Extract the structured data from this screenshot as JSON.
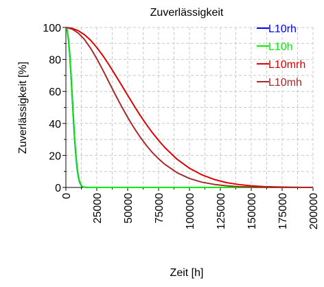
{
  "chart_data": {
    "type": "line",
    "title": "Zuverlässigkeit",
    "xlabel": "Zeit [h]",
    "ylabel": "Zuverlässigkeit [%]",
    "xlim": [
      0,
      200000
    ],
    "ylim": [
      0,
      100
    ],
    "xticks": [
      "0",
      "25000",
      "50000",
      "75000",
      "100000",
      "125000",
      "150000",
      "175000",
      "200000"
    ],
    "yticks": [
      "0",
      "20",
      "40",
      "60",
      "80",
      "100"
    ],
    "grid": true,
    "legend_position": "top-right",
    "series": [
      {
        "name": "L10rh",
        "color": "#0000ff",
        "x": [
          0,
          1000,
          2000,
          3000,
          4000,
          5000,
          6000,
          7000,
          8000,
          9000,
          10000,
          11000,
          12000,
          13000,
          14000,
          16000,
          20000,
          200000
        ],
        "y": [
          100,
          98.5,
          93.0,
          84.0,
          72.0,
          58.0,
          44.0,
          31.0,
          20.5,
          12.5,
          7.0,
          3.6,
          1.7,
          0.7,
          0.3,
          0.05,
          0,
          0
        ]
      },
      {
        "name": "L10h",
        "color": "#00ee00",
        "x": [
          0,
          1000,
          2000,
          3000,
          4000,
          5000,
          6000,
          7000,
          8000,
          9000,
          10000,
          11000,
          12000,
          13000,
          14000,
          16000,
          20000,
          200000
        ],
        "y": [
          100,
          98.5,
          93.5,
          85.0,
          73.0,
          59.5,
          45.5,
          32.5,
          21.5,
          13.5,
          7.6,
          4.0,
          1.9,
          0.8,
          0.35,
          0.05,
          0,
          0
        ]
      },
      {
        "name": "L10mrh",
        "color": "#dd0000",
        "x": [
          0,
          5000,
          10000,
          15000,
          20000,
          25000,
          30000,
          35000,
          40000,
          45000,
          50000,
          55000,
          60000,
          65000,
          70000,
          75000,
          80000,
          90000,
          100000,
          110000,
          120000,
          130000,
          140000,
          150000,
          160000,
          170000,
          180000,
          190000,
          200000
        ],
        "y": [
          100,
          99.5,
          98.0,
          95.5,
          92.0,
          87.5,
          82.3,
          76.5,
          70.3,
          64.0,
          57.6,
          51.3,
          45.2,
          39.5,
          34.2,
          29.4,
          25.0,
          17.6,
          12.0,
          7.9,
          5.0,
          3.0,
          1.8,
          1.0,
          0.55,
          0.3,
          0.15,
          0.07,
          0.03
        ]
      },
      {
        "name": "L10mh",
        "color": "#a52a2a",
        "x": [
          0,
          5000,
          10000,
          15000,
          20000,
          25000,
          30000,
          35000,
          40000,
          45000,
          50000,
          55000,
          60000,
          65000,
          70000,
          75000,
          80000,
          90000,
          100000,
          110000,
          120000,
          130000,
          140000,
          150000,
          160000,
          170000,
          180000,
          190000,
          200000
        ],
        "y": [
          100,
          99.0,
          96.5,
          92.5,
          87.0,
          80.5,
          73.2,
          65.6,
          58.0,
          50.7,
          43.8,
          37.4,
          31.6,
          26.4,
          21.8,
          17.9,
          14.5,
          9.2,
          5.6,
          3.3,
          1.9,
          1.0,
          0.5,
          0.25,
          0.12,
          0.05,
          0.02,
          0.01,
          0
        ]
      }
    ]
  }
}
